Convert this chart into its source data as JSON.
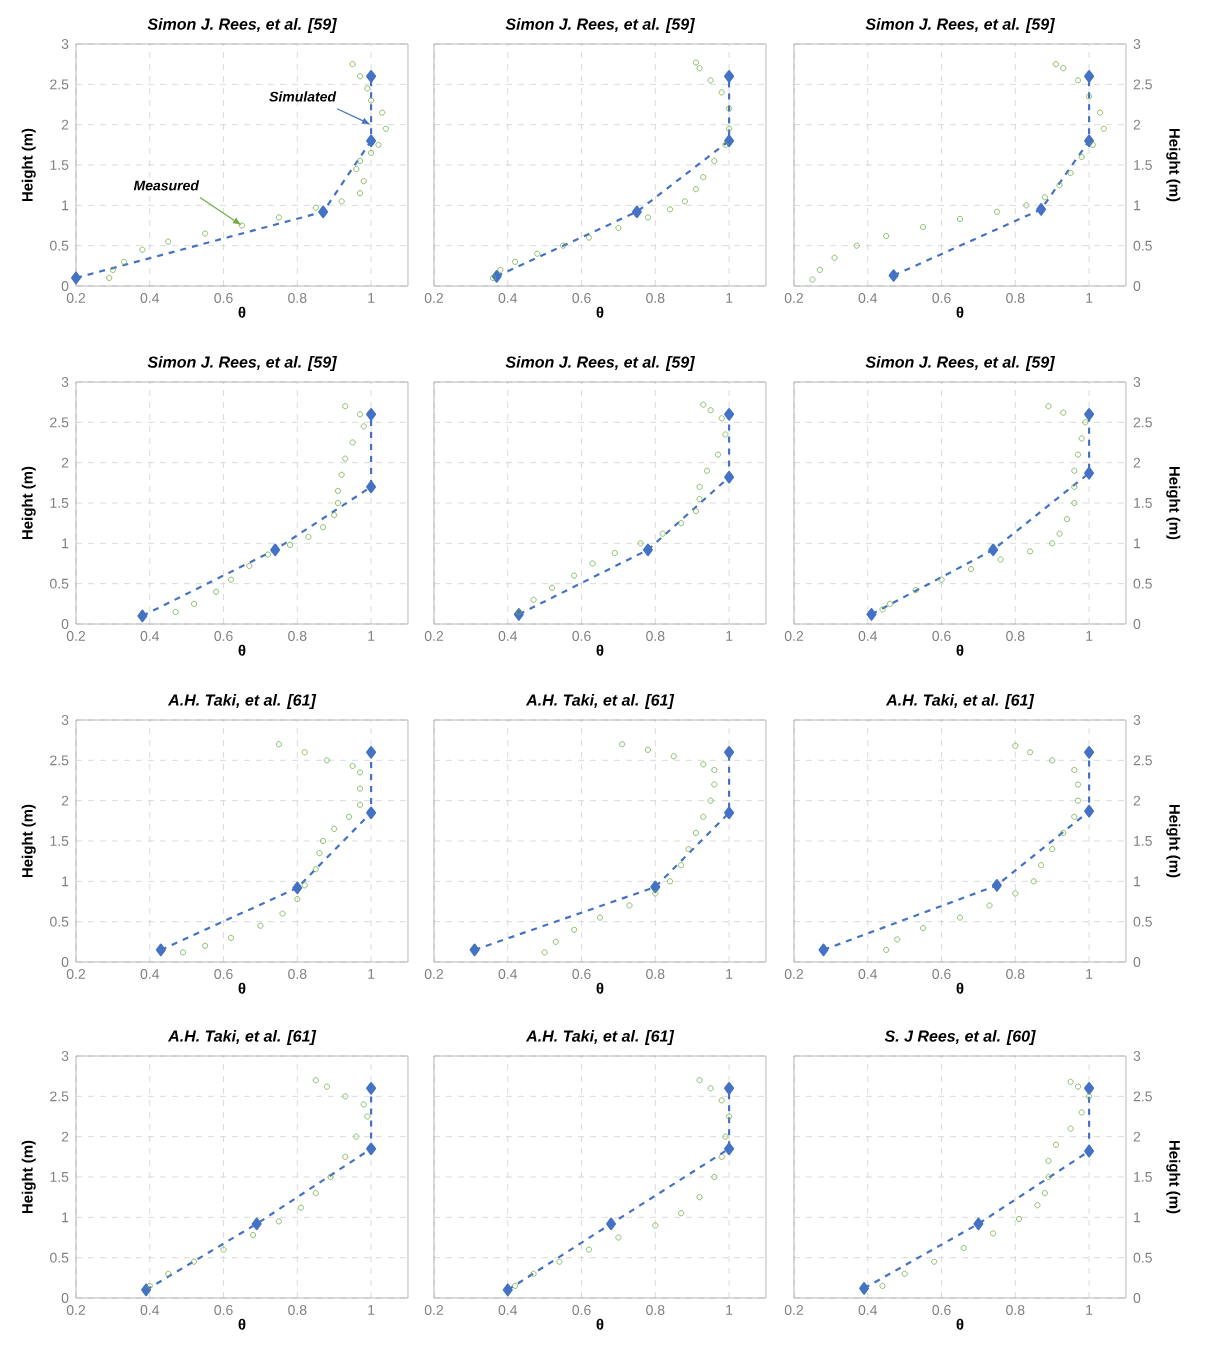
{
  "chart_data": [
    {
      "type": "scatter",
      "title": "Simon J. Rees, et al. [59]",
      "xlabel": "θ",
      "ylabel": "Height (m)",
      "xlim": [
        0.2,
        1.1
      ],
      "ylim": [
        0,
        3
      ],
      "xticks": [
        0.2,
        0.4,
        0.6,
        0.8,
        1
      ],
      "yticks": [
        0,
        0.5,
        1,
        1.5,
        2,
        2.5,
        3
      ],
      "grid": true,
      "annotations": [
        {
          "text": "Simulated",
          "x": 1.0,
          "y": 2.0
        },
        {
          "text": "Measured",
          "x": 0.65,
          "y": 0.75
        }
      ],
      "series": [
        {
          "color": "#70ad47",
          "marker": "circle",
          "x": [
            0.29,
            0.3,
            0.33,
            0.38,
            0.45,
            0.55,
            0.65,
            0.75,
            0.85,
            0.92,
            0.97,
            0.98,
            0.96,
            0.97,
            1.0,
            1.02,
            1.04,
            1.03,
            1.0,
            0.99,
            0.97,
            0.95
          ],
          "values": [
            0.1,
            0.2,
            0.3,
            0.45,
            0.55,
            0.65,
            0.75,
            0.85,
            0.97,
            1.05,
            1.15,
            1.3,
            1.45,
            1.55,
            1.65,
            1.75,
            1.95,
            2.15,
            2.3,
            2.45,
            2.6,
            2.75
          ]
        },
        {
          "type": "line",
          "color": "#4472c4",
          "marker": "diamond",
          "line_style": "dashed",
          "x": [
            0.2,
            0.87,
            1.0,
            1.0
          ],
          "values": [
            0.1,
            0.92,
            1.8,
            2.6
          ]
        }
      ]
    },
    {
      "type": "scatter",
      "title": "Simon J. Rees, et al. [59]",
      "xlabel": "θ",
      "xlim": [
        0.2,
        1.1
      ],
      "ylim": [
        0,
        3
      ],
      "xticks": [
        0.2,
        0.4,
        0.6,
        0.8,
        1
      ],
      "yticks": [
        0,
        0.5,
        1,
        1.5,
        2,
        2.5,
        3
      ],
      "grid": true,
      "tick_labels": "x",
      "series": [
        {
          "color": "#70ad47",
          "marker": "circle",
          "x": [
            0.36,
            0.38,
            0.42,
            0.48,
            0.55,
            0.62,
            0.7,
            0.78,
            0.84,
            0.88,
            0.91,
            0.93,
            0.96,
            0.99,
            1.0,
            1.0,
            0.98,
            0.95,
            0.92,
            0.91
          ],
          "values": [
            0.1,
            0.2,
            0.3,
            0.4,
            0.5,
            0.6,
            0.72,
            0.85,
            0.95,
            1.05,
            1.2,
            1.35,
            1.55,
            1.75,
            1.95,
            2.2,
            2.4,
            2.55,
            2.7,
            2.77
          ]
        },
        {
          "type": "line",
          "color": "#4472c4",
          "marker": "diamond",
          "line_style": "dashed",
          "x": [
            0.37,
            0.75,
            1.0,
            1.0
          ],
          "values": [
            0.12,
            0.92,
            1.8,
            2.6
          ]
        }
      ]
    },
    {
      "type": "scatter",
      "title": "Simon J. Rees, et al. [59]",
      "xlabel": "θ",
      "ylabel": "Height (m)",
      "xlim": [
        0.2,
        1.1
      ],
      "ylim": [
        0,
        3
      ],
      "xticks": [
        0.2,
        0.4,
        0.6,
        0.8,
        1
      ],
      "yticks": [
        0,
        0.5,
        1,
        1.5,
        2,
        2.5,
        3
      ],
      "grid": true,
      "series": [
        {
          "color": "#70ad47",
          "marker": "circle",
          "x": [
            0.25,
            0.27,
            0.31,
            0.37,
            0.45,
            0.55,
            0.65,
            0.75,
            0.83,
            0.88,
            0.92,
            0.95,
            0.98,
            1.01,
            1.04,
            1.03,
            1.0,
            0.97,
            0.93,
            0.91
          ],
          "values": [
            0.08,
            0.2,
            0.35,
            0.5,
            0.62,
            0.73,
            0.83,
            0.92,
            1.0,
            1.1,
            1.25,
            1.4,
            1.6,
            1.75,
            1.95,
            2.15,
            2.35,
            2.55,
            2.7,
            2.75
          ]
        },
        {
          "type": "line",
          "color": "#4472c4",
          "marker": "diamond",
          "line_style": "dashed",
          "x": [
            0.47,
            0.87,
            1.0,
            1.0
          ],
          "values": [
            0.13,
            0.95,
            1.8,
            2.6
          ]
        }
      ]
    },
    {
      "type": "scatter",
      "title": "Simon J. Rees, et al. [59]",
      "xlabel": "θ",
      "ylabel": "Height (m)",
      "xlim": [
        0.2,
        1.1
      ],
      "ylim": [
        0,
        3
      ],
      "xticks": [
        0.2,
        0.4,
        0.6,
        0.8,
        1
      ],
      "yticks": [
        0,
        0.5,
        1,
        1.5,
        2,
        2.5,
        3
      ],
      "grid": true,
      "series": [
        {
          "color": "#70ad47",
          "marker": "circle",
          "x": [
            0.47,
            0.52,
            0.58,
            0.62,
            0.67,
            0.72,
            0.78,
            0.83,
            0.87,
            0.9,
            0.91,
            0.91,
            0.92,
            0.93,
            0.95,
            0.98,
            0.97,
            0.93
          ],
          "values": [
            0.15,
            0.25,
            0.4,
            0.55,
            0.72,
            0.86,
            0.98,
            1.08,
            1.2,
            1.35,
            1.5,
            1.65,
            1.85,
            2.05,
            2.25,
            2.45,
            2.6,
            2.7
          ]
        },
        {
          "type": "line",
          "color": "#4472c4",
          "marker": "diamond",
          "line_style": "dashed",
          "x": [
            0.38,
            0.74,
            1.0,
            1.0
          ],
          "values": [
            0.1,
            0.92,
            1.7,
            2.6
          ]
        }
      ]
    },
    {
      "type": "scatter",
      "title": "Simon J. Rees, et al. [59]",
      "xlabel": "θ",
      "xlim": [
        0.2,
        1.1
      ],
      "ylim": [
        0,
        3
      ],
      "xticks": [
        0.2,
        0.4,
        0.6,
        0.8,
        1
      ],
      "yticks": [
        0,
        0.5,
        1,
        1.5,
        2,
        2.5,
        3
      ],
      "grid": true,
      "tick_labels": "x",
      "series": [
        {
          "color": "#70ad47",
          "marker": "circle",
          "x": [
            0.43,
            0.47,
            0.52,
            0.58,
            0.63,
            0.69,
            0.76,
            0.82,
            0.87,
            0.91,
            0.92,
            0.92,
            0.94,
            0.97,
            0.99,
            0.98,
            0.95,
            0.93
          ],
          "values": [
            0.15,
            0.3,
            0.45,
            0.6,
            0.75,
            0.88,
            1.0,
            1.12,
            1.25,
            1.4,
            1.55,
            1.7,
            1.9,
            2.1,
            2.35,
            2.55,
            2.65,
            2.72
          ]
        },
        {
          "type": "line",
          "color": "#4472c4",
          "marker": "diamond",
          "line_style": "dashed",
          "x": [
            0.43,
            0.78,
            1.0,
            1.0
          ],
          "values": [
            0.12,
            0.92,
            1.82,
            2.6
          ]
        }
      ]
    },
    {
      "type": "scatter",
      "title": "Simon J. Rees, et al. [59]",
      "xlabel": "θ",
      "ylabel": "Height (m)",
      "xlim": [
        0.2,
        1.1
      ],
      "ylim": [
        0,
        3
      ],
      "xticks": [
        0.2,
        0.4,
        0.6,
        0.8,
        1
      ],
      "yticks": [
        0,
        0.5,
        1,
        1.5,
        2,
        2.5,
        3
      ],
      "grid": true,
      "series": [
        {
          "color": "#70ad47",
          "marker": "circle",
          "x": [
            0.44,
            0.46,
            0.53,
            0.6,
            0.68,
            0.76,
            0.84,
            0.9,
            0.92,
            0.94,
            0.96,
            0.96,
            0.96,
            0.97,
            0.98,
            0.99,
            0.93,
            0.89
          ],
          "values": [
            0.18,
            0.25,
            0.42,
            0.55,
            0.68,
            0.8,
            0.9,
            1.0,
            1.12,
            1.3,
            1.5,
            1.7,
            1.9,
            2.1,
            2.3,
            2.5,
            2.62,
            2.7
          ]
        },
        {
          "type": "line",
          "color": "#4472c4",
          "marker": "diamond",
          "line_style": "dashed",
          "x": [
            0.41,
            0.74,
            1.0,
            1.0
          ],
          "values": [
            0.12,
            0.92,
            1.87,
            2.6
          ]
        }
      ]
    },
    {
      "type": "scatter",
      "title": "A.H. Taki, et al. [61]",
      "xlabel": "θ",
      "ylabel": "Height (m)",
      "xlim": [
        0.2,
        1.1
      ],
      "ylim": [
        0,
        3
      ],
      "xticks": [
        0.2,
        0.4,
        0.6,
        0.8,
        1
      ],
      "yticks": [
        0,
        0.5,
        1,
        1.5,
        2,
        2.5,
        3
      ],
      "grid": true,
      "series": [
        {
          "color": "#70ad47",
          "marker": "circle",
          "x": [
            0.49,
            0.55,
            0.62,
            0.7,
            0.76,
            0.8,
            0.82,
            0.85,
            0.86,
            0.87,
            0.9,
            0.94,
            0.97,
            0.97,
            0.97,
            0.95,
            0.88,
            0.82,
            0.75
          ],
          "values": [
            0.12,
            0.2,
            0.3,
            0.45,
            0.6,
            0.78,
            0.95,
            1.15,
            1.35,
            1.5,
            1.65,
            1.8,
            1.95,
            2.15,
            2.35,
            2.43,
            2.5,
            2.6,
            2.7
          ]
        },
        {
          "type": "line",
          "color": "#4472c4",
          "marker": "diamond",
          "line_style": "dashed",
          "x": [
            0.43,
            0.8,
            1.0,
            1.0
          ],
          "values": [
            0.15,
            0.92,
            1.85,
            2.6
          ]
        }
      ]
    },
    {
      "type": "scatter",
      "title": "A.H. Taki, et al. [61]",
      "xlabel": "θ",
      "xlim": [
        0.2,
        1.1
      ],
      "ylim": [
        0,
        3
      ],
      "xticks": [
        0.2,
        0.4,
        0.6,
        0.8,
        1
      ],
      "yticks": [
        0,
        0.5,
        1,
        1.5,
        2,
        2.5,
        3
      ],
      "grid": true,
      "tick_labels": "x",
      "series": [
        {
          "color": "#70ad47",
          "marker": "circle",
          "x": [
            0.5,
            0.53,
            0.58,
            0.65,
            0.73,
            0.8,
            0.84,
            0.87,
            0.89,
            0.91,
            0.93,
            0.95,
            0.96,
            0.96,
            0.93,
            0.85,
            0.78,
            0.71
          ],
          "values": [
            0.12,
            0.25,
            0.4,
            0.55,
            0.7,
            0.85,
            1.0,
            1.2,
            1.4,
            1.6,
            1.8,
            2.0,
            2.2,
            2.38,
            2.45,
            2.55,
            2.63,
            2.7
          ]
        },
        {
          "type": "line",
          "color": "#4472c4",
          "marker": "diamond",
          "line_style": "dashed",
          "x": [
            0.31,
            0.8,
            1.0,
            1.0
          ],
          "values": [
            0.15,
            0.93,
            1.85,
            2.6
          ]
        }
      ]
    },
    {
      "type": "scatter",
      "title": "A.H. Taki, et al. [61]",
      "xlabel": "θ",
      "ylabel": "Height (m)",
      "xlim": [
        0.2,
        1.1
      ],
      "ylim": [
        0,
        3
      ],
      "xticks": [
        0.2,
        0.4,
        0.6,
        0.8,
        1
      ],
      "yticks": [
        0,
        0.5,
        1,
        1.5,
        2,
        2.5,
        3
      ],
      "grid": true,
      "series": [
        {
          "color": "#70ad47",
          "marker": "circle",
          "x": [
            0.45,
            0.48,
            0.55,
            0.65,
            0.73,
            0.8,
            0.85,
            0.87,
            0.9,
            0.93,
            0.96,
            0.97,
            0.97,
            0.96,
            0.9,
            0.84,
            0.8
          ],
          "values": [
            0.15,
            0.28,
            0.42,
            0.55,
            0.7,
            0.85,
            1.0,
            1.2,
            1.4,
            1.6,
            1.8,
            2.0,
            2.2,
            2.38,
            2.5,
            2.6,
            2.68
          ]
        },
        {
          "type": "line",
          "color": "#4472c4",
          "marker": "diamond",
          "line_style": "dashed",
          "x": [
            0.28,
            0.75,
            1.0,
            1.0
          ],
          "values": [
            0.15,
            0.95,
            1.87,
            2.6
          ]
        }
      ]
    },
    {
      "type": "scatter",
      "title": "A.H. Taki, et al. [61]",
      "xlabel": "θ",
      "ylabel": "Height (m)",
      "xlim": [
        0.2,
        1.1
      ],
      "ylim": [
        0,
        3
      ],
      "xticks": [
        0.2,
        0.4,
        0.6,
        0.8,
        1
      ],
      "yticks": [
        0,
        0.5,
        1,
        1.5,
        2,
        2.5,
        3
      ],
      "grid": true,
      "series": [
        {
          "color": "#70ad47",
          "marker": "circle",
          "x": [
            0.4,
            0.45,
            0.52,
            0.6,
            0.68,
            0.75,
            0.81,
            0.85,
            0.89,
            0.93,
            0.96,
            0.99,
            0.98,
            0.93,
            0.88,
            0.85
          ],
          "values": [
            0.15,
            0.3,
            0.45,
            0.6,
            0.78,
            0.95,
            1.12,
            1.3,
            1.5,
            1.75,
            2.0,
            2.25,
            2.4,
            2.5,
            2.62,
            2.7
          ]
        },
        {
          "type": "line",
          "color": "#4472c4",
          "marker": "diamond",
          "line_style": "dashed",
          "x": [
            0.39,
            0.69,
            1.0,
            1.0
          ],
          "values": [
            0.1,
            0.92,
            1.85,
            2.6
          ]
        }
      ]
    },
    {
      "type": "scatter",
      "title": "A.H. Taki, et al. [61]",
      "xlabel": "θ",
      "xlim": [
        0.2,
        1.1
      ],
      "ylim": [
        0,
        3
      ],
      "xticks": [
        0.2,
        0.4,
        0.6,
        0.8,
        1
      ],
      "yticks": [
        0,
        0.5,
        1,
        1.5,
        2,
        2.5,
        3
      ],
      "grid": true,
      "tick_labels": "x",
      "series": [
        {
          "color": "#70ad47",
          "marker": "circle",
          "x": [
            0.42,
            0.47,
            0.54,
            0.62,
            0.7,
            0.8,
            0.87,
            0.92,
            0.96,
            0.98,
            0.99,
            1.0,
            0.98,
            0.95,
            0.92
          ],
          "values": [
            0.15,
            0.3,
            0.45,
            0.6,
            0.75,
            0.9,
            1.05,
            1.25,
            1.5,
            1.75,
            2.0,
            2.25,
            2.45,
            2.6,
            2.7
          ]
        },
        {
          "type": "line",
          "color": "#4472c4",
          "marker": "diamond",
          "line_style": "dashed",
          "x": [
            0.4,
            0.68,
            1.0,
            1.0
          ],
          "values": [
            0.1,
            0.92,
            1.85,
            2.6
          ]
        }
      ]
    },
    {
      "type": "scatter",
      "title": "S. J Rees, et al. [60]",
      "xlabel": "θ",
      "ylabel": "Height (m)",
      "xlim": [
        0.2,
        1.1
      ],
      "ylim": [
        0,
        3
      ],
      "xticks": [
        0.2,
        0.4,
        0.6,
        0.8,
        1
      ],
      "yticks": [
        0,
        0.5,
        1,
        1.5,
        2,
        2.5,
        3
      ],
      "grid": true,
      "series": [
        {
          "color": "#70ad47",
          "marker": "circle",
          "x": [
            0.44,
            0.5,
            0.58,
            0.66,
            0.74,
            0.81,
            0.86,
            0.88,
            0.89,
            0.89,
            0.91,
            0.95,
            0.98,
            1.0,
            0.97,
            0.95
          ],
          "values": [
            0.15,
            0.3,
            0.45,
            0.62,
            0.8,
            0.98,
            1.15,
            1.3,
            1.5,
            1.7,
            1.9,
            2.1,
            2.3,
            2.5,
            2.62,
            2.68
          ]
        },
        {
          "type": "line",
          "color": "#4472c4",
          "marker": "diamond",
          "line_style": "dashed",
          "x": [
            0.39,
            0.7,
            1.0,
            1.0
          ],
          "values": [
            0.12,
            0.92,
            1.82,
            2.6
          ]
        }
      ]
    }
  ]
}
